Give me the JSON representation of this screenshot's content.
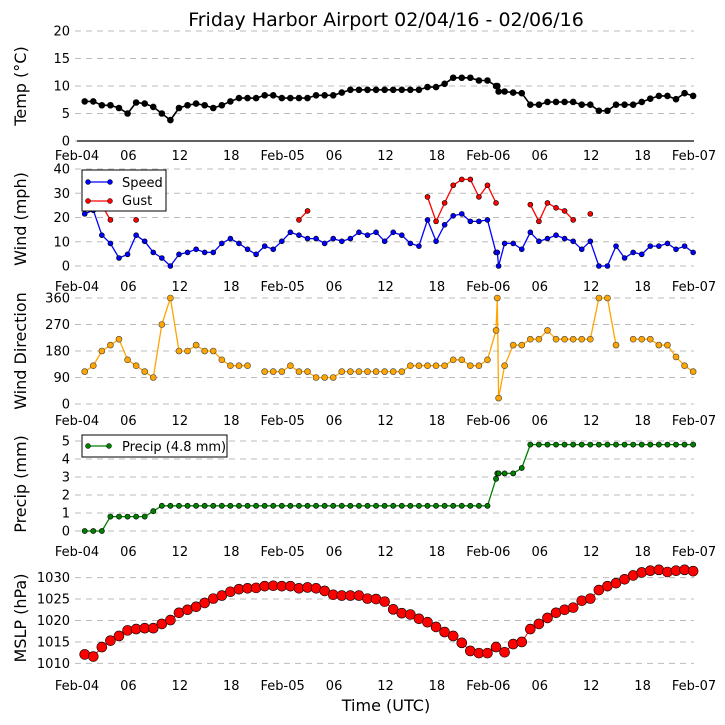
{
  "chart_data": {
    "type": "line",
    "title": "Friday Harbor Airport 02/04/16 - 02/06/16",
    "xlabel": "Time (UTC)",
    "x_units": "hours since Feb-04 00:00 UTC",
    "x_range": [
      0,
      72
    ],
    "x_ticks": {
      "hours": [
        0,
        6,
        12,
        18,
        24,
        30,
        36,
        42,
        48,
        54,
        60,
        66,
        72
      ],
      "labels": [
        "Feb-04",
        "06",
        "12",
        "18",
        "Feb-05",
        "06",
        "12",
        "18",
        "Feb-06",
        "06",
        "12",
        "18",
        "Feb-07"
      ]
    },
    "x_hours": [
      0.9,
      1.9,
      2.9,
      3.9,
      4.9,
      5.9,
      6.9,
      7.9,
      8.9,
      9.9,
      10.9,
      11.9,
      12.9,
      13.9,
      14.9,
      15.9,
      16.9,
      17.9,
      18.9,
      19.9,
      20.9,
      21.9,
      22.9,
      23.9,
      24.9,
      25.9,
      26.9,
      27.9,
      28.9,
      29.9,
      30.9,
      31.9,
      32.9,
      33.9,
      34.9,
      35.9,
      36.9,
      37.9,
      38.9,
      39.9,
      40.9,
      41.9,
      42.9,
      43.9,
      44.9,
      45.9,
      46.9,
      47.9,
      48.9,
      49.05,
      49.2,
      49.9,
      50.9,
      51.9,
      52.9,
      53.9,
      54.9,
      55.9,
      56.9,
      57.9,
      58.9,
      59.9,
      60.9,
      61.9,
      62.9,
      63.9,
      64.9,
      65.9,
      66.9,
      67.9,
      68.9,
      69.9,
      70.9,
      71.9
    ],
    "panels": [
      {
        "ylabel": "Temp (°C)",
        "ylim": [
          0,
          20
        ],
        "yticks": [
          0,
          5,
          10,
          15,
          20
        ],
        "grid": true,
        "series": [
          {
            "name": "Temp",
            "color": "#000000",
            "values": [
              7.2,
              7.2,
              6.5,
              6.5,
              6.0,
              5.0,
              7.0,
              6.8,
              6.2,
              5.0,
              3.8,
              6.0,
              6.5,
              6.8,
              6.5,
              6.0,
              6.5,
              7.2,
              7.8,
              7.8,
              7.8,
              8.3,
              8.3,
              7.8,
              7.8,
              7.8,
              7.8,
              8.3,
              8.3,
              8.3,
              8.8,
              9.3,
              9.3,
              9.3,
              9.3,
              9.3,
              9.3,
              9.3,
              9.3,
              9.3,
              9.8,
              9.8,
              10.4,
              11.5,
              11.5,
              11.5,
              11.0,
              11.0,
              10.0,
              10.0,
              9.0,
              9.0,
              8.8,
              8.7,
              6.6,
              6.6,
              7.1,
              7.1,
              7.1,
              7.1,
              6.6,
              6.6,
              5.5,
              5.5,
              6.6,
              6.6,
              6.6,
              7.1,
              7.7,
              8.2,
              8.2,
              7.6,
              8.7,
              8.2
            ]
          }
        ]
      },
      {
        "ylabel": "Wind (mph)",
        "ylim": [
          0,
          40
        ],
        "yticks": [
          0,
          10,
          20,
          30,
          40
        ],
        "grid": true,
        "legend": "top-left",
        "series": [
          {
            "name": "Speed",
            "color": "#0000ff",
            "values": [
              21.5,
              23,
              12.7,
              9.3,
              3.3,
              4.8,
              12.7,
              10.2,
              5.6,
              3.3,
              0,
              4.8,
              5.6,
              6.9,
              5.6,
              5.6,
              9.3,
              11.3,
              9.3,
              6.9,
              4.8,
              8.2,
              6.9,
              10.2,
              13.9,
              12.7,
              11.3,
              11.3,
              9.3,
              11.3,
              10.2,
              11.3,
              13.9,
              12.7,
              13.9,
              10.2,
              13.9,
              12.7,
              9.3,
              8.2,
              19,
              10.2,
              17,
              20.7,
              21.5,
              18.4,
              18.4,
              19,
              5.6,
              5.6,
              0,
              9.3,
              9.3,
              6.9,
              13.9,
              10.2,
              11.3,
              12.7,
              11.3,
              10.2,
              6.9,
              10.2,
              0,
              0,
              8.2,
              3.3,
              5.6,
              4.8,
              8.2,
              8.2,
              9.3,
              6.9,
              8.2,
              5.6
            ]
          },
          {
            "name": "Gust",
            "color": "#ff0000",
            "values": [
              null,
              null,
              25,
              19,
              null,
              null,
              19,
              null,
              null,
              null,
              null,
              null,
              null,
              null,
              null,
              null,
              null,
              null,
              null,
              null,
              null,
              null,
              null,
              null,
              null,
              19,
              22.7,
              null,
              null,
              null,
              null,
              null,
              null,
              null,
              null,
              null,
              null,
              null,
              null,
              null,
              28.5,
              18.4,
              26,
              33.3,
              35.7,
              35.7,
              28.5,
              33.3,
              26,
              null,
              null,
              null,
              null,
              null,
              25.3,
              18.4,
              26,
              24,
              22.7,
              19,
              null,
              21.5,
              null,
              null,
              null,
              null,
              null,
              null,
              null,
              null,
              null,
              null,
              null,
              null
            ]
          }
        ]
      },
      {
        "ylabel": "Wind Direction",
        "ylim": [
          0,
          360
        ],
        "yticks": [
          0,
          90,
          180,
          270,
          360
        ],
        "grid": true,
        "series": [
          {
            "name": "Direction",
            "color": "#ffa500",
            "values": [
              110,
              130,
              180,
              200,
              220,
              150,
              130,
              110,
              90,
              270,
              360,
              180,
              180,
              200,
              180,
              180,
              150,
              130,
              130,
              130,
              null,
              110,
              110,
              110,
              130,
              110,
              110,
              90,
              90,
              90,
              110,
              110,
              110,
              110,
              110,
              110,
              110,
              110,
              130,
              130,
              130,
              130,
              130,
              150,
              150,
              130,
              130,
              150,
              250,
              360,
              20,
              130,
              200,
              200,
              220,
              220,
              250,
              220,
              220,
              220,
              220,
              220,
              360,
              360,
              200,
              null,
              220,
              220,
              220,
              200,
              200,
              160,
              130,
              110
            ]
          }
        ]
      },
      {
        "ylabel": "Precip (mm)",
        "ylim": [
          0,
          5
        ],
        "yticks": [
          0,
          1,
          2,
          3,
          4,
          5
        ],
        "grid": true,
        "legend": "top-left",
        "series": [
          {
            "name": "Precip (4.8 mm)",
            "color": "#007f00",
            "values": [
              0,
              0,
              0,
              0.8,
              0.8,
              0.8,
              0.8,
              0.8,
              1.1,
              1.4,
              1.4,
              1.4,
              1.4,
              1.4,
              1.4,
              1.4,
              1.4,
              1.4,
              1.4,
              1.4,
              1.4,
              1.4,
              1.4,
              1.4,
              1.4,
              1.4,
              1.4,
              1.4,
              1.4,
              1.4,
              1.4,
              1.4,
              1.4,
              1.4,
              1.4,
              1.4,
              1.4,
              1.4,
              1.4,
              1.4,
              1.4,
              1.4,
              1.4,
              1.4,
              1.4,
              1.4,
              1.4,
              1.4,
              2.9,
              3.2,
              3.2,
              3.2,
              3.2,
              3.5,
              4.8,
              4.8,
              4.8,
              4.8,
              4.8,
              4.8,
              4.8,
              4.8,
              4.8,
              4.8,
              4.8,
              4.8,
              4.8,
              4.8,
              4.8,
              4.8,
              4.8,
              4.8,
              4.8,
              4.8
            ]
          }
        ]
      },
      {
        "ylabel": "MSLP (hPa)",
        "ylim": [
          1008,
          1032
        ],
        "yticks": [
          1010,
          1015,
          1020,
          1025,
          1030
        ],
        "grid": true,
        "series": [
          {
            "name": "MSLP",
            "color": "#ff0000",
            "values": [
              1012.1,
              1011.6,
              1013.8,
              1015.3,
              1016.4,
              1017.7,
              1018,
              1018.2,
              1018.2,
              1019.2,
              1020.1,
              1021.8,
              1022.5,
              1023.2,
              1024.1,
              1025.1,
              1025.8,
              1026.7,
              1027.3,
              1027.5,
              1027.6,
              1028,
              1028.1,
              1028,
              1028,
              1027.5,
              1027.7,
              1027.5,
              1026.9,
              1026,
              1025.8,
              1025.8,
              1025.8,
              1025.1,
              1025,
              1024.4,
              1022.6,
              1021.7,
              1021.4,
              1020.4,
              1019.6,
              1018.5,
              1017.3,
              1016.4,
              1014.8,
              1012.9,
              1012.4,
              1012.4,
              1013.8,
              null,
              null,
              1012.6,
              1014.5,
              1015,
              1018,
              1019.2,
              1020.6,
              1021.8,
              1022.5,
              1023,
              1024.6,
              1025.1,
              1027.1,
              1028,
              1028.7,
              1029.6,
              1030.5,
              1031.2,
              1031.6,
              1031.8,
              1031.3,
              1031.6,
              1031.8,
              1031.5
            ]
          }
        ]
      }
    ]
  }
}
